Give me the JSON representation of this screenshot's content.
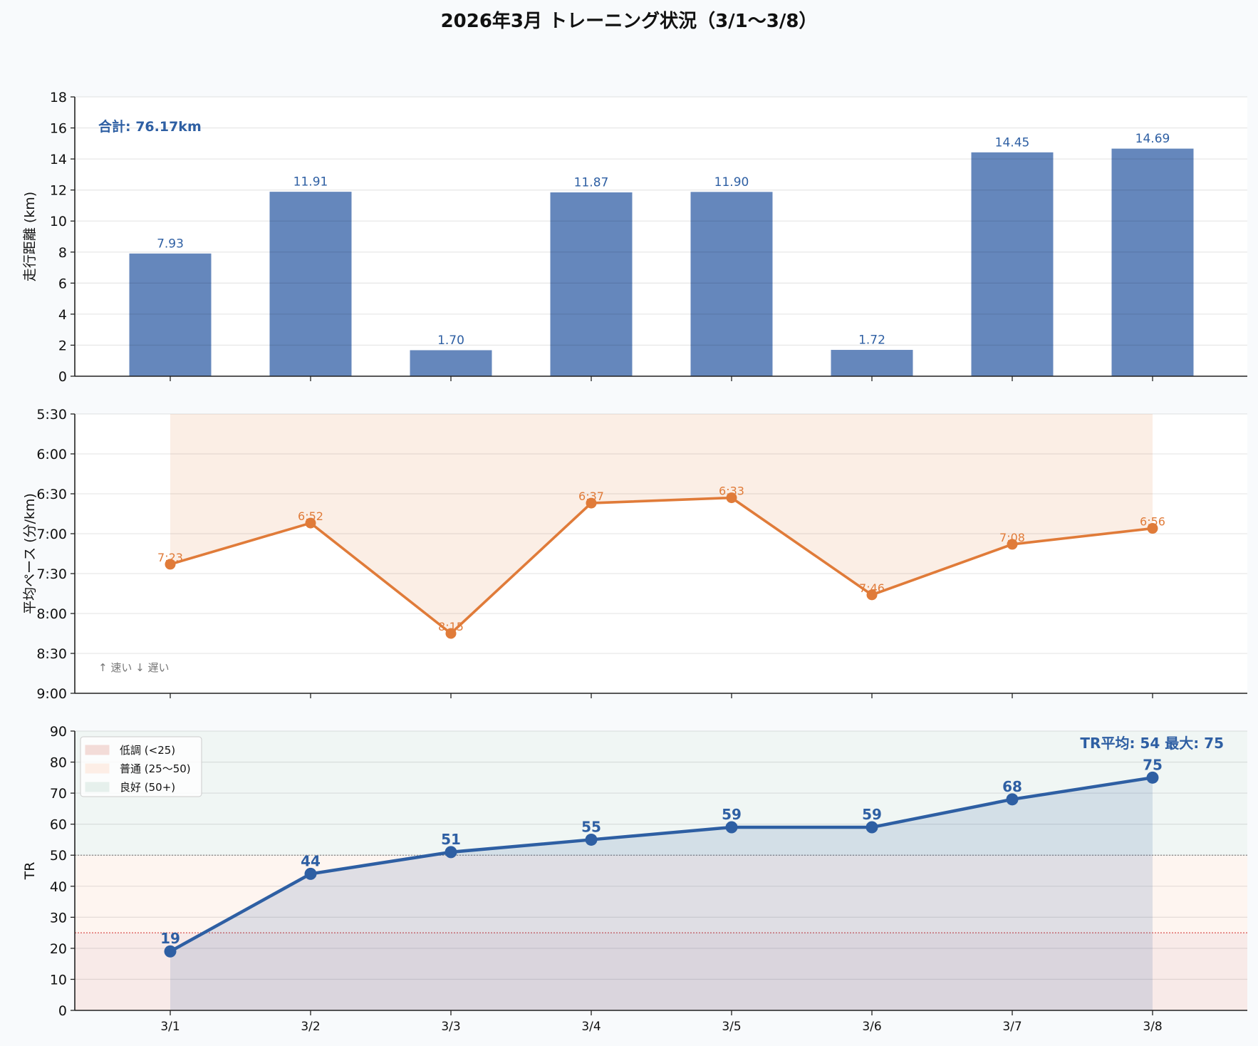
{
  "title": "2026年3月 トレーニング状況（3/1〜3/8）",
  "colors": {
    "bar": "#4a72b0",
    "pace": "#e07b39",
    "tr": "#2e5fa3",
    "low": "#f3dcd8",
    "normal": "#fdeee6",
    "good": "#e6f0ec",
    "background": "#f8fafc"
  },
  "chart_data": [
    {
      "type": "bar",
      "categories": [
        "3/1",
        "3/2",
        "3/3",
        "3/4",
        "3/5",
        "3/6",
        "3/7",
        "3/8"
      ],
      "values": [
        7.93,
        11.91,
        1.7,
        11.87,
        11.9,
        1.72,
        14.45,
        14.69
      ],
      "data_labels": [
        "7.93",
        "11.91",
        "1.70",
        "11.87",
        "11.90",
        "1.72",
        "14.45",
        "14.69"
      ],
      "ylabel": "走行距離 (km)",
      "ylim": [
        0,
        18
      ],
      "yticks": [
        "0",
        "2",
        "4",
        "6",
        "8",
        "10",
        "12",
        "14",
        "16",
        "18"
      ],
      "annotation": "合計: 76.17km",
      "grid": true
    },
    {
      "type": "line",
      "categories": [
        "3/1",
        "3/2",
        "3/3",
        "3/4",
        "3/5",
        "3/6",
        "3/7",
        "3/8"
      ],
      "values": [
        "7:23",
        "6:52",
        "8:15",
        "6:37",
        "6:33",
        "7:46",
        "7:08",
        "6:56"
      ],
      "ylabel": "平均ペース (分/km)",
      "ylim": [
        "9:00",
        "5:30"
      ],
      "inverted_axis": true,
      "yticks": [
        "5:30",
        "6:00",
        "6:30",
        "7:00",
        "7:30",
        "8:00",
        "8:30",
        "9:00"
      ],
      "annotation": "↑ 速い  ↓ 遅い",
      "grid": true
    },
    {
      "type": "line",
      "categories": [
        "3/1",
        "3/2",
        "3/3",
        "3/4",
        "3/5",
        "3/6",
        "3/7",
        "3/8"
      ],
      "values": [
        19,
        44,
        51,
        55,
        59,
        59,
        68,
        75
      ],
      "ylabel": "TR",
      "ylim": [
        0,
        90
      ],
      "yticks": [
        "0",
        "10",
        "20",
        "30",
        "40",
        "50",
        "60",
        "70",
        "80",
        "90"
      ],
      "bands": [
        {
          "label": "低調 (<25)",
          "from": 0,
          "to": 25
        },
        {
          "label": "普通 (25〜50)",
          "from": 25,
          "to": 50
        },
        {
          "label": "良好 (50+)",
          "from": 50,
          "to": 90
        }
      ],
      "legend_position": "upper-left",
      "annotation": "TR平均: 54  最大: 75",
      "grid": true
    }
  ]
}
